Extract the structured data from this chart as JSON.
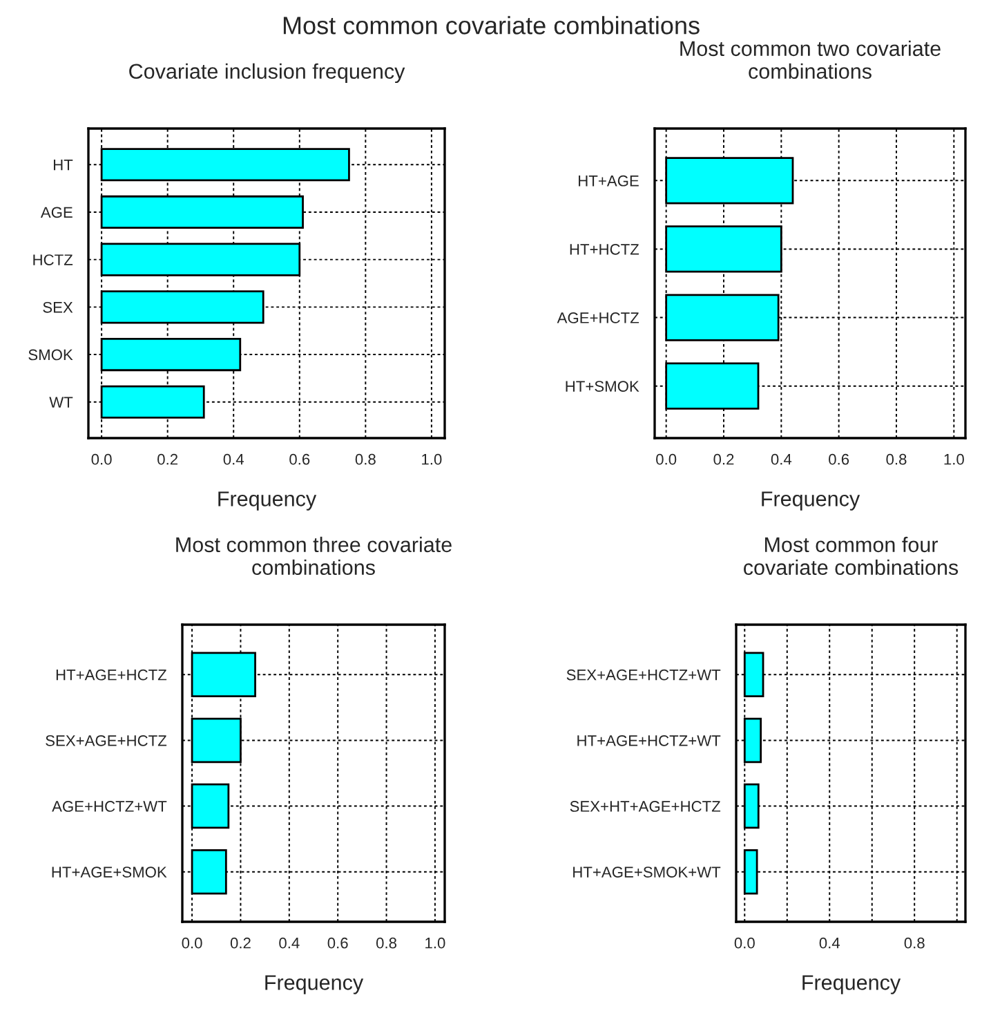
{
  "chart_data": [
    {
      "type": "bar",
      "orientation": "horizontal",
      "title": "Covariate inclusion frequency",
      "xlabel": "Frequency",
      "categories": [
        "HT",
        "AGE",
        "HCTZ",
        "SEX",
        "SMOK",
        "WT"
      ],
      "values": [
        0.75,
        0.61,
        0.6,
        0.49,
        0.42,
        0.31
      ],
      "color": "#00ffff",
      "xlim": [
        -0.04,
        1.04
      ],
      "xticks": [
        {
          "value": 0,
          "label": "0.0"
        },
        0.2,
        0.4,
        0.6,
        0.8,
        {
          "value": 1,
          "label": "1.0"
        }
      ],
      "grid": true
    },
    {
      "type": "bar",
      "orientation": "horizontal",
      "title": "Most common two covariate\ncombinations",
      "xlabel": "Frequency",
      "categories": [
        "HT+AGE",
        "HT+HCTZ",
        "AGE+HCTZ",
        "HT+SMOK"
      ],
      "values": [
        0.44,
        0.4,
        0.39,
        0.32
      ],
      "color": "#00ffff",
      "xlim": [
        -0.04,
        1.04
      ],
      "xticks": [
        {
          "value": 0,
          "label": "0.0"
        },
        0.2,
        0.4,
        0.6,
        0.8,
        {
          "value": 1,
          "label": "1.0"
        }
      ],
      "grid": true
    },
    {
      "type": "bar",
      "orientation": "horizontal",
      "title": "Most common three covariate\ncombinations",
      "xlabel": "Frequency",
      "categories": [
        "HT+AGE+HCTZ",
        "SEX+AGE+HCTZ",
        "AGE+HCTZ+WT",
        "HT+AGE+SMOK"
      ],
      "values": [
        0.26,
        0.2,
        0.15,
        0.14
      ],
      "color": "#00ffff",
      "xlim": [
        -0.04,
        1.04
      ],
      "xticks": [
        {
          "value": 0,
          "label": "0.0"
        },
        0.2,
        0.4,
        0.6,
        0.8,
        {
          "value": 1,
          "label": "1.0"
        }
      ],
      "grid": true
    },
    {
      "type": "bar",
      "orientation": "horizontal",
      "title": "Most common four\ncovariate combinations",
      "xlabel": "Frequency",
      "categories": [
        "SEX+AGE+HCTZ+WT",
        "HT+AGE+HCTZ+WT",
        "SEX+HT+AGE+HCTZ",
        "HT+AGE+SMOK+WT"
      ],
      "values": [
        0.087,
        0.076,
        0.065,
        0.058
      ],
      "color": "#00ffff",
      "xlim": [
        -0.04,
        1.04
      ],
      "xticks": [
        {
          "value": 0,
          "label": "0.0"
        },
        {
          "value": 0.2,
          "label": null
        },
        0.4,
        {
          "value": 0.6,
          "label": null
        },
        0.8,
        {
          "value": 1,
          "label": null
        }
      ],
      "grid": true
    },
    {
      "type": "other",
      "title": "Most common covariate combinations"
    }
  ]
}
